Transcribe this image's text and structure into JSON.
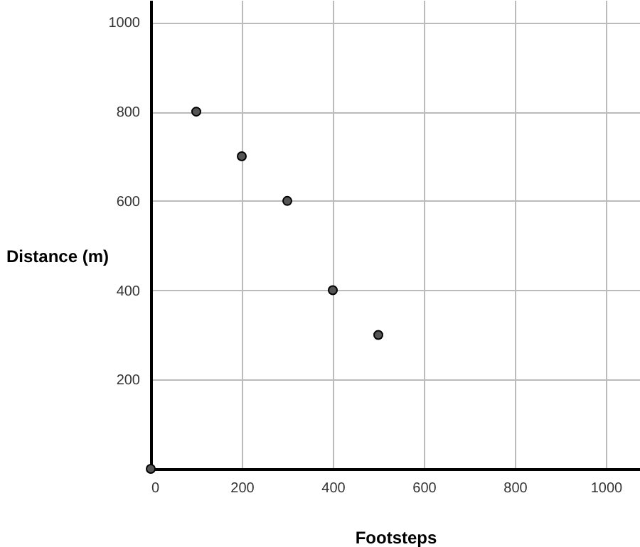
{
  "chart_data": {
    "type": "scatter",
    "xlabel": "Footsteps",
    "ylabel": "Distance (m)",
    "x": [
      0,
      100,
      200,
      300,
      400,
      500
    ],
    "series": [
      {
        "color": "#555555",
        "values": [
          0,
          800,
          700,
          600,
          400,
          300
        ]
      }
    ],
    "xlim": [
      0,
      1075
    ],
    "ylim": [
      0,
      1050
    ],
    "xticks": [
      0,
      200,
      400,
      600,
      800,
      1000
    ],
    "yticks": [
      {
        "value": 0,
        "label": null
      },
      200,
      400,
      600,
      800,
      1000
    ],
    "grid": true,
    "marker": "circle"
  }
}
